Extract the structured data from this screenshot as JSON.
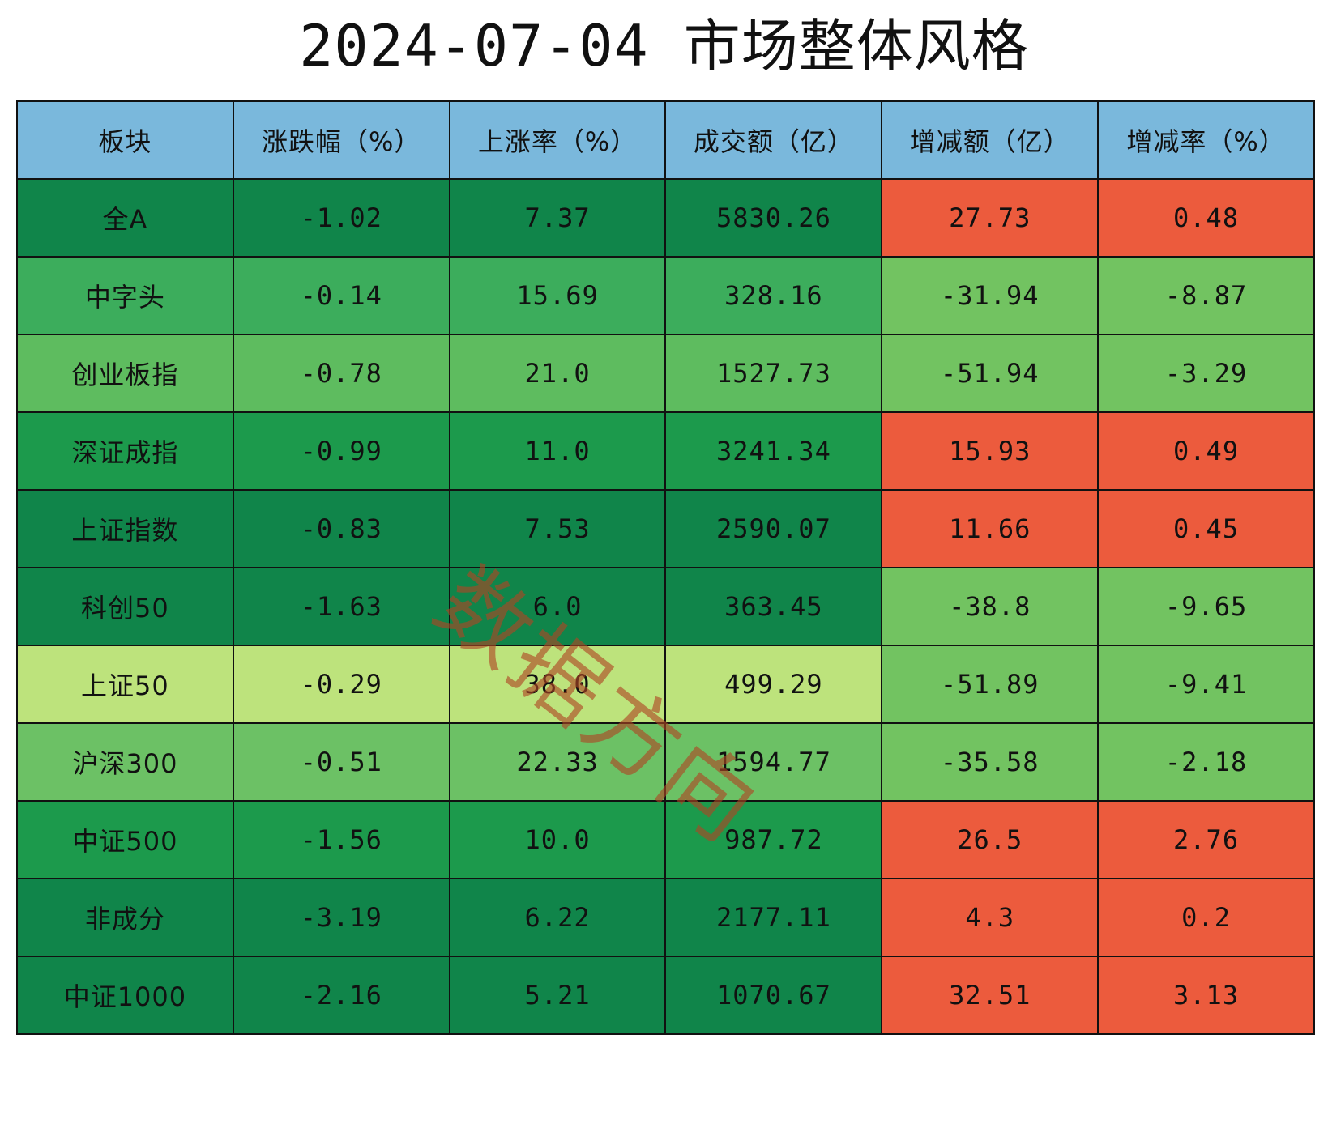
{
  "title": "2024-07-04 市场整体风格",
  "watermark": "数据方向",
  "colors": {
    "header_bg": "#7ab8dc",
    "green_dark": "#10854a",
    "green_mid": "#1c9a4c",
    "green_med": "#3cad5c",
    "green_light": "#5ebc5f",
    "green_lighter": "#6cc165",
    "green_pale": "#bde37c",
    "pos_red": "#ec5b3d",
    "neg_green": "#72c361",
    "border": "#111111"
  },
  "chart_data": {
    "type": "table",
    "title": "2024-07-04 市场整体风格",
    "columns": [
      "板块",
      "涨跌幅（%）",
      "上涨率（%）",
      "成交额（亿）",
      "增减额（亿）",
      "增减率（%）"
    ],
    "rows": [
      [
        "全A",
        "-1.02",
        "7.37",
        "5830.26",
        "27.73",
        "0.48"
      ],
      [
        "中字头",
        "-0.14",
        "15.69",
        "328.16",
        "-31.94",
        "-8.87"
      ],
      [
        "创业板指",
        "-0.78",
        "21.0",
        "1527.73",
        "-51.94",
        "-3.29"
      ],
      [
        "深证成指",
        "-0.99",
        "11.0",
        "3241.34",
        "15.93",
        "0.49"
      ],
      [
        "上证指数",
        "-0.83",
        "7.53",
        "2590.07",
        "11.66",
        "0.45"
      ],
      [
        "科创50",
        "-1.63",
        "6.0",
        "363.45",
        "-38.8",
        "-9.65"
      ],
      [
        "上证50",
        "-0.29",
        "38.0",
        "499.29",
        "-51.89",
        "-9.41"
      ],
      [
        "沪深300",
        "-0.51",
        "22.33",
        "1594.77",
        "-35.58",
        "-2.18"
      ],
      [
        "中证500",
        "-1.56",
        "10.0",
        "987.72",
        "26.5",
        "2.76"
      ],
      [
        "非成分",
        "-3.19",
        "6.22",
        "2177.11",
        "4.3",
        "0.2"
      ],
      [
        "中证1000",
        "-2.16",
        "5.21",
        "1070.67",
        "32.51",
        "3.13"
      ]
    ],
    "row_left_colors": [
      "#10854a",
      "#3cad5c",
      "#5ebc5f",
      "#1c9a4c",
      "#10854a",
      "#10854a",
      "#bde37c",
      "#6cc165",
      "#1c9a4c",
      "#10854a",
      "#10854a"
    ]
  }
}
